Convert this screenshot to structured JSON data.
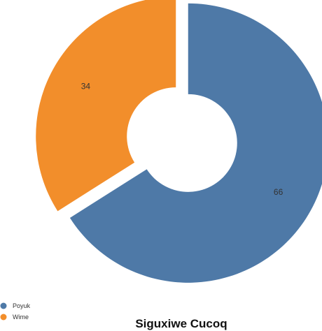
{
  "chart_data": {
    "type": "pie",
    "variant": "donut",
    "title": "Siguxiwe Cucoq",
    "labels": [
      "Poyuk",
      "Wime"
    ],
    "values": [
      66,
      34
    ],
    "colors": [
      "#4e79a7",
      "#f28e2b"
    ],
    "exploded": true,
    "legend_position": "bottom-left",
    "show_values": true
  }
}
